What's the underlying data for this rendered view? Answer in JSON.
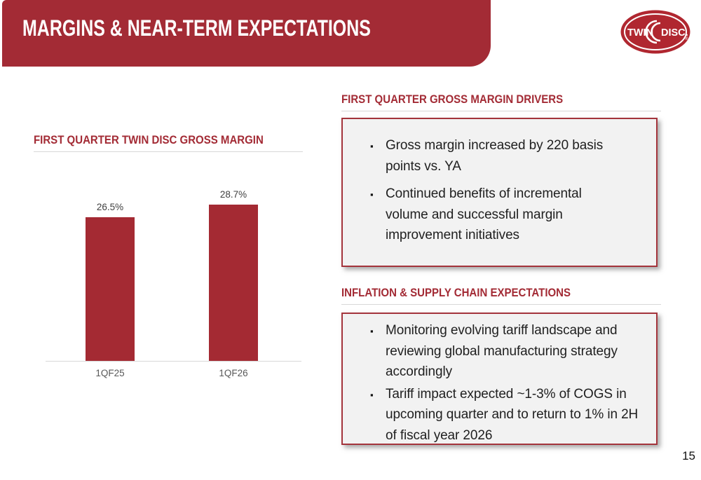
{
  "header": {
    "title": "MARGINS & NEAR-TERM EXPECTATIONS"
  },
  "logo": {
    "brand": "Twin Disc",
    "left": "TWIN",
    "right": "DISC.",
    "registered": "®"
  },
  "chart": {
    "heading": "FIRST QUARTER TWIN DISC GROSS MARGIN"
  },
  "chart_data": {
    "type": "bar",
    "title": "FIRST QUARTER TWIN DISC GROSS MARGIN",
    "categories": [
      "1QF25",
      "1QF26"
    ],
    "values": [
      26.5,
      28.7
    ],
    "value_labels": [
      "26.5%",
      "28.7%"
    ],
    "xlabel": "",
    "ylabel": "",
    "ylim": [
      0,
      30
    ],
    "grid": false,
    "legend": false,
    "data_labels": true,
    "bar_color": "#A42A33"
  },
  "sections": [
    {
      "heading": "FIRST QUARTER GROSS MARGIN DRIVERS",
      "bullets": [
        "Gross margin increased by 220 basis points vs. YA",
        "Continued benefits of incremental volume and successful margin improvement initiatives"
      ]
    },
    {
      "heading": "INFLATION & SUPPLY CHAIN EXPECTATIONS",
      "bullets": [
        "Monitoring evolving tariff landscape and reviewing global manufacturing strategy accordingly",
        "Tariff impact expected ~1-3% of COGS in upcoming quarter and to return to 1% in 2H of fiscal year 2026"
      ]
    }
  ],
  "footer": {
    "page_number": "15"
  },
  "colors": {
    "brand_red": "#A32B35",
    "bar_red": "#A42A33",
    "logo_red": "#B02730",
    "box_bg": "#F2F2F2",
    "box_border": "#A4343C",
    "underline": "#D8D8D8",
    "text_dark": "#1F1F1F",
    "label_gray": "#595959",
    "value_gray": "#404040"
  }
}
